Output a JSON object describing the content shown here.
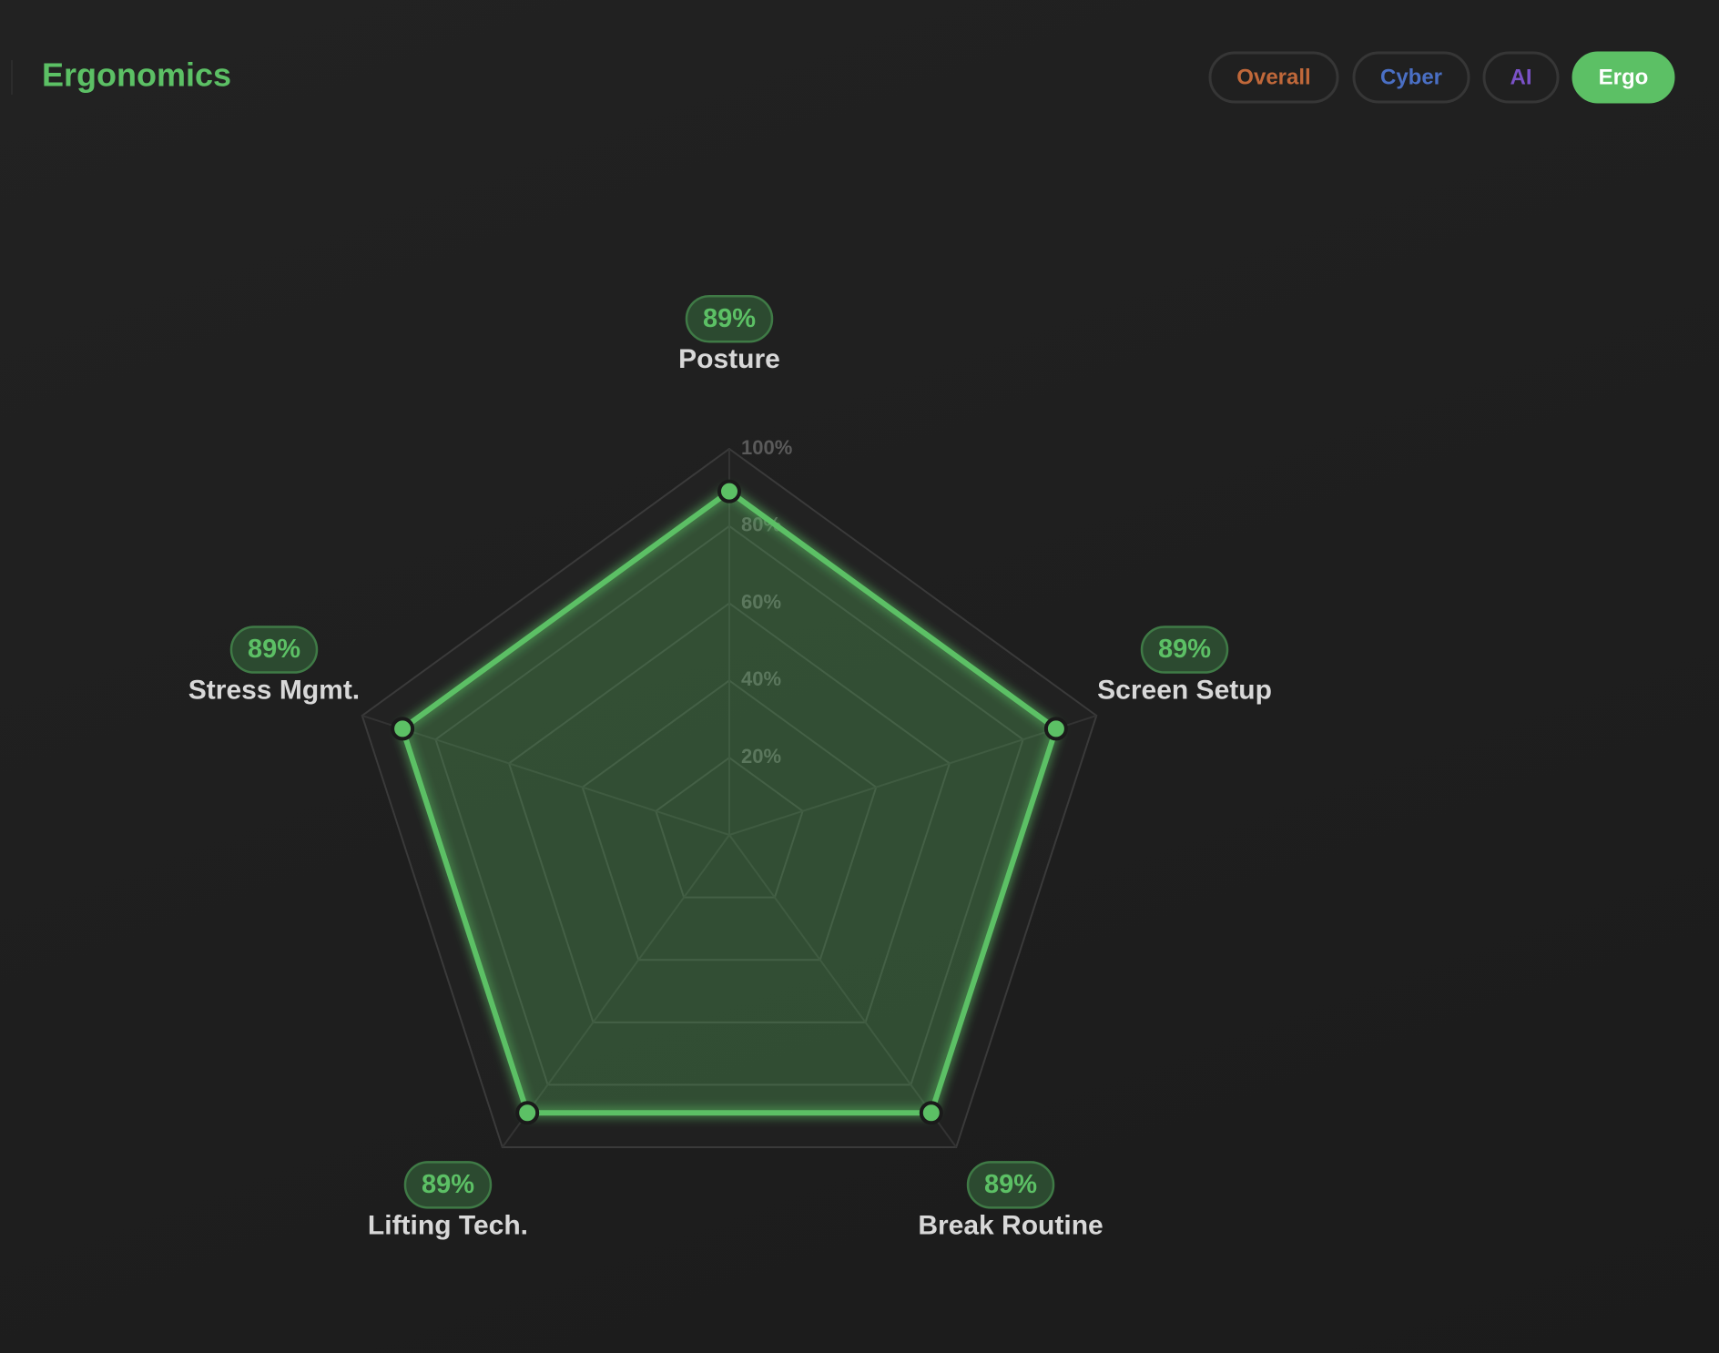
{
  "filters": [
    {
      "label": "Overall",
      "color": "#c0683a",
      "active": false
    },
    {
      "label": "Cyber",
      "color": "#4a6fc4",
      "active": false
    },
    {
      "label": "AI",
      "color": "#7b52c8",
      "active": false
    },
    {
      "label": "Ergo",
      "color": "#5cc065",
      "active": true
    }
  ],
  "chart_data": {
    "type": "radar",
    "title": "Ergonomics",
    "categories": [
      "Posture",
      "Screen Setup",
      "Break Routine",
      "Lifting Tech.",
      "Stress Mgmt."
    ],
    "values": [
      89,
      89,
      89,
      89,
      89
    ],
    "value_labels": [
      "89%",
      "89%",
      "89%",
      "89%",
      "89%"
    ],
    "color": "#5cc065",
    "rlim": [
      0,
      100
    ],
    "rticks": [
      {
        "value": 20,
        "label": "20%"
      },
      {
        "value": 40,
        "label": "40%"
      },
      {
        "value": 60,
        "label": "60%"
      },
      {
        "value": 80,
        "label": "80%"
      },
      {
        "value": 100,
        "label": "100%"
      }
    ],
    "grid": true
  }
}
